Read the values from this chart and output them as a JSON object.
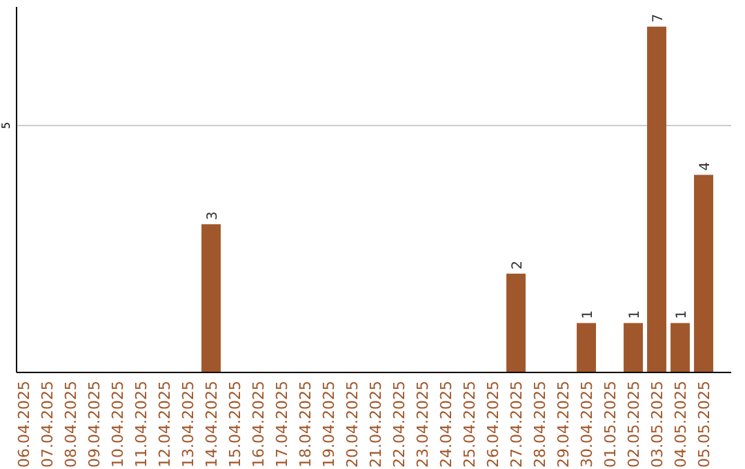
{
  "chart_data": {
    "type": "bar",
    "categories": [
      "06.04.2025",
      "07.04.2025",
      "08.04.2025",
      "09.04.2025",
      "10.04.2025",
      "11.04.2025",
      "12.04.2025",
      "13.04.2025",
      "14.04.2025",
      "15.04.2025",
      "16.04.2025",
      "17.04.2025",
      "18.04.2025",
      "19.04.2025",
      "20.04.2025",
      "21.04.2025",
      "22.04.2025",
      "23.04.2025",
      "24.04.2025",
      "25.04.2025",
      "26.04.2025",
      "27.04.2025",
      "28.04.2025",
      "29.04.2025",
      "30.04.2025",
      "01.05.2025",
      "02.05.2025",
      "03.05.2025",
      "04.05.2025",
      "05.05.2025"
    ],
    "values": [
      0,
      0,
      0,
      0,
      0,
      0,
      0,
      0,
      3,
      0,
      0,
      0,
      0,
      0,
      0,
      0,
      0,
      0,
      0,
      0,
      0,
      2,
      0,
      0,
      1,
      0,
      1,
      7,
      1,
      4
    ],
    "value_labels": [
      null,
      null,
      null,
      null,
      null,
      null,
      null,
      null,
      "3",
      null,
      null,
      null,
      null,
      null,
      null,
      null,
      null,
      null,
      null,
      null,
      null,
      "2",
      null,
      null,
      "1",
      null,
      "1",
      "7",
      "1",
      "4"
    ],
    "color": "#a0572b",
    "ylim": [
      0,
      7.4
    ],
    "yticks": [
      5
    ],
    "grid": "y"
  }
}
